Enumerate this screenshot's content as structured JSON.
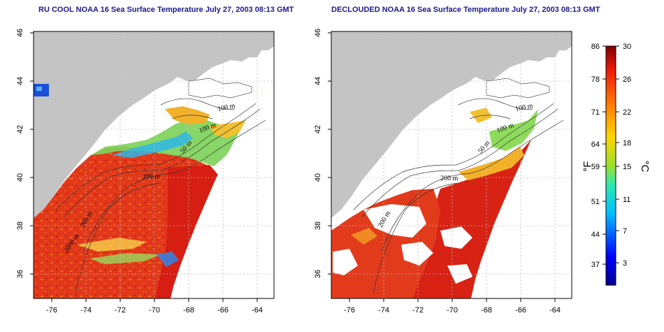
{
  "map_left": {
    "title": "RU COOL NOAA 16 Sea Surface Temperature July 27, 2003 08:13 GMT",
    "contour_labels": [
      "100 m",
      "100 m",
      "50 m",
      "200 m",
      "200 m",
      "2000 m"
    ]
  },
  "map_right": {
    "title": "DECLOUDED NOAA 16 Sea Surface Temperature July 27, 2003 08:13 GMT",
    "contour_labels": [
      "100 m",
      "100 m",
      "50 m",
      "200 m",
      "200 m"
    ]
  },
  "axes": {
    "lon_ticks": [
      "-76",
      "-74",
      "-72",
      "-70",
      "-68",
      "-66",
      "-64"
    ],
    "lat_ticks": [
      "46",
      "44",
      "42",
      "40",
      "38",
      "36"
    ]
  },
  "colorbar": {
    "fahrenheit_ticks": [
      "86",
      "78",
      "71",
      "64",
      "59",
      "51",
      "44",
      "37"
    ],
    "celsius_ticks": [
      "30",
      "26",
      "22",
      "18",
      "15",
      "11",
      "7",
      "3"
    ],
    "fahrenheit_unit": "°F",
    "celsius_unit": "°C",
    "range_c": [
      0,
      30
    ]
  },
  "colors": {
    "land": "#c4c4c4",
    "no_data": "#ffffff",
    "title": "#1a1a8c",
    "warm": "#e23b1c",
    "hot": "#d21c10",
    "mid": "#f0a020",
    "cool": "#6fd35a",
    "cold": "#1c8fe0"
  }
}
